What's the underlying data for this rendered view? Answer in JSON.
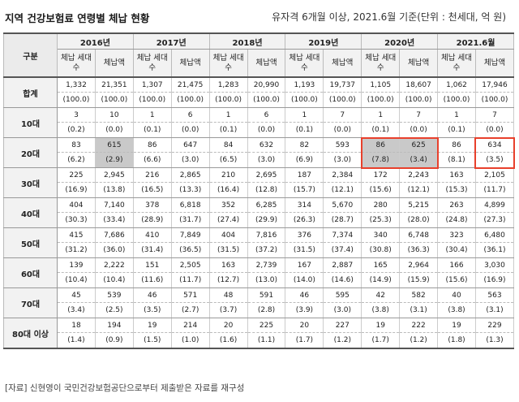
{
  "title": "지역 건강보험료 연령별 체납 현황",
  "subtitle": "유자격 6개월 이상, 2021.6월 기준(단위 : 천세대, 억 원)",
  "header": {
    "age_col": "구분",
    "years": [
      "2016년",
      "2017년",
      "2018년",
      "2019년",
      "2020년",
      "2021.6월"
    ],
    "sub_households": "체납 세대수",
    "sub_amount": "체납액"
  },
  "rows": [
    {
      "label": "합계",
      "values": [
        "1,332",
        "21,351",
        "1,307",
        "21,475",
        "1,283",
        "20,990",
        "1,193",
        "19,737",
        "1,105",
        "18,607",
        "1,062",
        "17,946"
      ],
      "pcts": [
        "(100.0)",
        "(100.0)",
        "(100.0)",
        "(100.0)",
        "(100.0)",
        "(100.0)",
        "(100.0)",
        "(100.0)",
        "(100.0)",
        "(100.0)",
        "(100.0)",
        "(100.0)"
      ]
    },
    {
      "label": "10대",
      "values": [
        "3",
        "10",
        "1",
        "6",
        "1",
        "6",
        "1",
        "7",
        "1",
        "7",
        "1",
        "7"
      ],
      "pcts": [
        "(0.2)",
        "(0.0)",
        "(0.1)",
        "(0.0)",
        "(0.1)",
        "(0.0)",
        "(0.1)",
        "(0.0)",
        "(0.1)",
        "(0.0)",
        "(0.1)",
        "(0.0)"
      ]
    },
    {
      "label": "20대",
      "values": [
        "83",
        "615",
        "86",
        "647",
        "84",
        "632",
        "82",
        "593",
        "86",
        "625",
        "86",
        "634"
      ],
      "pcts": [
        "(6.2)",
        "(2.9)",
        "(6.6)",
        "(3.0)",
        "(6.5)",
        "(3.0)",
        "(6.9)",
        "(3.0)",
        "(7.8)",
        "(3.4)",
        "(8.1)",
        "(3.5)"
      ]
    },
    {
      "label": "30대",
      "values": [
        "225",
        "2,945",
        "216",
        "2,865",
        "210",
        "2,695",
        "187",
        "2,384",
        "172",
        "2,243",
        "163",
        "2,105"
      ],
      "pcts": [
        "(16.9)",
        "(13.8)",
        "(16.5)",
        "(13.3)",
        "(16.4)",
        "(12.8)",
        "(15.7)",
        "(12.1)",
        "(15.6)",
        "(12.1)",
        "(15.3)",
        "(11.7)"
      ]
    },
    {
      "label": "40대",
      "values": [
        "404",
        "7,140",
        "378",
        "6,818",
        "352",
        "6,285",
        "314",
        "5,670",
        "280",
        "5,215",
        "263",
        "4,899"
      ],
      "pcts": [
        "(30.3)",
        "(33.4)",
        "(28.9)",
        "(31.7)",
        "(27.4)",
        "(29.9)",
        "(26.3)",
        "(28.7)",
        "(25.3)",
        "(28.0)",
        "(24.8)",
        "(27.3)"
      ]
    },
    {
      "label": "50대",
      "values": [
        "415",
        "7,686",
        "410",
        "7,849",
        "404",
        "7,816",
        "376",
        "7,374",
        "340",
        "6,748",
        "323",
        "6,480"
      ],
      "pcts": [
        "(31.2)",
        "(36.0)",
        "(31.4)",
        "(36.5)",
        "(31.5)",
        "(37.2)",
        "(31.5)",
        "(37.4)",
        "(30.8)",
        "(36.3)",
        "(30.4)",
        "(36.1)"
      ]
    },
    {
      "label": "60대",
      "values": [
        "139",
        "2,222",
        "151",
        "2,505",
        "163",
        "2,739",
        "167",
        "2,887",
        "165",
        "2,964",
        "166",
        "3,030"
      ],
      "pcts": [
        "(10.4)",
        "(10.4)",
        "(11.6)",
        "(11.7)",
        "(12.7)",
        "(13.0)",
        "(14.0)",
        "(14.6)",
        "(14.9)",
        "(15.9)",
        "(15.6)",
        "(16.9)"
      ]
    },
    {
      "label": "70대",
      "values": [
        "45",
        "539",
        "46",
        "571",
        "48",
        "591",
        "46",
        "595",
        "42",
        "582",
        "40",
        "563"
      ],
      "pcts": [
        "(3.4)",
        "(2.5)",
        "(3.5)",
        "(2.7)",
        "(3.7)",
        "(2.8)",
        "(3.9)",
        "(3.0)",
        "(3.8)",
        "(3.1)",
        "(3.8)",
        "(3.1)"
      ]
    },
    {
      "label": "80대 이상",
      "values": [
        "18",
        "194",
        "19",
        "214",
        "20",
        "225",
        "20",
        "227",
        "19",
        "222",
        "19",
        "229"
      ],
      "pcts": [
        "(1.4)",
        "(0.9)",
        "(1.5)",
        "(1.0)",
        "(1.6)",
        "(1.1)",
        "(1.7)",
        "(1.2)",
        "(1.7)",
        "(1.2)",
        "(1.8)",
        "(1.3)"
      ]
    }
  ],
  "shaded_cells": {
    "row": 2,
    "cols": [
      1,
      8,
      9
    ]
  },
  "highlight_color": "#e8402c",
  "source_note": "[자료] 신현영이 국민건강보험공단으로부터 제출받은 자료를 재구성"
}
